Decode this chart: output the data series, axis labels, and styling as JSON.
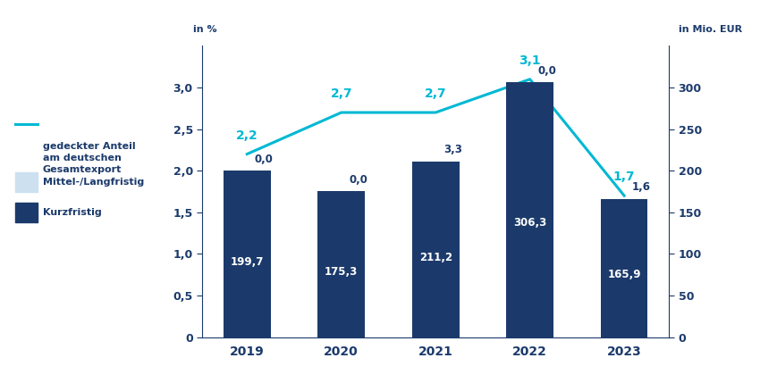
{
  "years": [
    "2019",
    "2020",
    "2021",
    "2022",
    "2023"
  ],
  "bar_values_kurz": [
    199.7,
    175.3,
    211.2,
    306.3,
    165.9
  ],
  "bar_labels_kurz": [
    "199,7",
    "175,3",
    "211,2",
    "306,3",
    "165,9"
  ],
  "bar_labels_top": [
    "0,0",
    "0,0",
    "3,3",
    "0,0",
    "1,6"
  ],
  "line_values": [
    2.2,
    2.7,
    2.7,
    3.1,
    1.7
  ],
  "line_labels": [
    "2,2",
    "2,7",
    "2,7",
    "3,1",
    "1,7"
  ],
  "color_kurz": "#1b3a6b",
  "color_mittel": "#cce0f0",
  "color_line": "#00b8d4",
  "color_text": "#1b3a6b",
  "ylim_left": [
    0,
    3.5
  ],
  "ylim_right": [
    0,
    350
  ],
  "yticks_left": [
    0,
    0.5,
    1.0,
    1.5,
    2.0,
    2.5,
    3.0
  ],
  "yticks_right": [
    0,
    50,
    100,
    150,
    200,
    250,
    300
  ],
  "ylabel_left": "in %",
  "ylabel_right": "in Mio. EUR",
  "legend_line": "gedeckter Anteil\nam deutschen\nGesamtexport",
  "legend_mittel": "Mittel-/Langfristig",
  "legend_kurz": "Kurzfristig",
  "bar_width": 0.5,
  "background_color": "#ffffff"
}
